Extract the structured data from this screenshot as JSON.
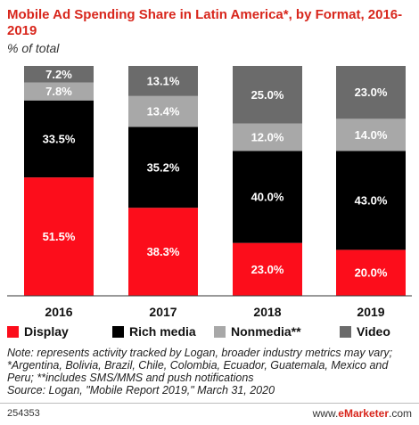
{
  "chart_data": {
    "type": "bar",
    "stacked": true,
    "title": "Mobile Ad Spending Share in Latin America*, by Format, 2016-2019",
    "subtitle": "% of total",
    "categories": [
      "2016",
      "2017",
      "2018",
      "2019"
    ],
    "ylim": [
      0,
      100
    ],
    "grid": false,
    "legend_position": "bottom",
    "series": [
      {
        "name": "Display",
        "color": "#fc0d1b",
        "values": [
          51.5,
          38.3,
          23.0,
          20.0
        ],
        "labels": [
          "51.5%",
          "38.3%",
          "23.0%",
          "20.0%"
        ]
      },
      {
        "name": "Rich media",
        "color": "#000000",
        "values": [
          33.5,
          35.2,
          40.0,
          43.0
        ],
        "labels": [
          "33.5%",
          "35.2%",
          "40.0%",
          "43.0%"
        ]
      },
      {
        "name": "Nonmedia**",
        "color": "#a8a8a8",
        "values": [
          7.8,
          13.4,
          12.0,
          14.0
        ],
        "labels": [
          "7.8%",
          "13.4%",
          "12.0%",
          "14.0%"
        ]
      },
      {
        "name": "Video",
        "color": "#6b6b6b",
        "values": [
          7.2,
          13.1,
          25.0,
          23.0
        ],
        "labels": [
          "7.2%",
          "13.1%",
          "25.0%",
          "23.0%"
        ]
      }
    ]
  },
  "note": "Note: represents activity tracked by Logan, broader industry metrics may vary; *Argentina, Bolivia, Brazil, Chile, Colombia, Ecuador, Guatemala, Mexico and Peru; **includes SMS/MMS and push notifications",
  "source": "Source: Logan, \"Mobile Report 2019,\" March 31, 2020",
  "footer": {
    "chart_id": "254353",
    "brand_prefix": "www.",
    "brand_name": "eMarketer",
    "brand_suffix": ".com"
  }
}
